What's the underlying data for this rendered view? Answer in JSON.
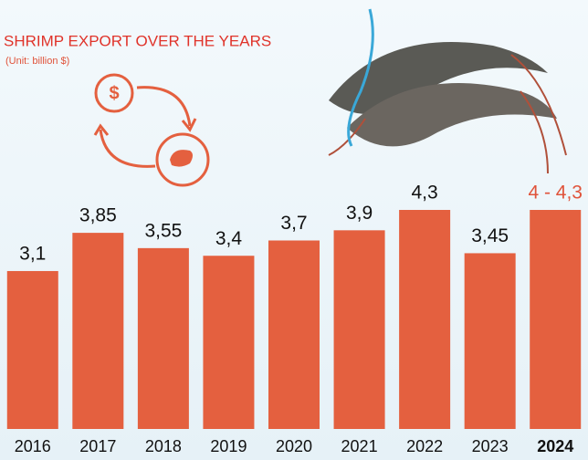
{
  "chart_data": {
    "type": "bar",
    "title": "SHRIMP EXPORT OVER THE YEARS",
    "subtitle": "(Unit: billion $)",
    "categories": [
      "2016",
      "2017",
      "2018",
      "2019",
      "2020",
      "2021",
      "2022",
      "2023",
      "2024"
    ],
    "values": [
      3.1,
      3.85,
      3.55,
      3.4,
      3.7,
      3.9,
      4.3,
      3.45,
      4.3
    ],
    "value_labels": [
      "3,1",
      "3,85",
      "3,55",
      "3,4",
      "3,7",
      "3,9",
      "4,3",
      "3,45",
      "4 - 4,3"
    ],
    "value_label_colors": [
      "#111111",
      "#111111",
      "#111111",
      "#111111",
      "#111111",
      "#111111",
      "#111111",
      "#111111",
      "#e0533a"
    ],
    "color": "#e4603f",
    "title_color": "#e0332a"
  }
}
